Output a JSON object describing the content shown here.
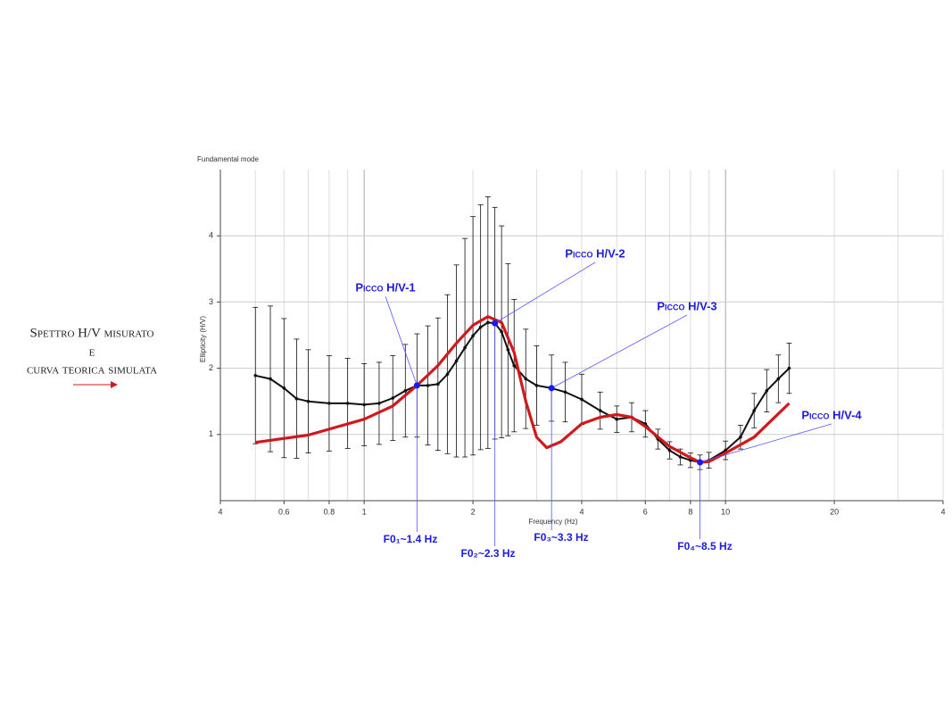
{
  "chart_data": {
    "type": "line",
    "title": "Fundamental mode",
    "xlabel": "Frequency (Hz)",
    "ylabel": "Ellipticity (H/V)",
    "xscale": "log",
    "xlim": [
      0.4,
      40
    ],
    "ylim": [
      0,
      5
    ],
    "xticks": [
      {
        "value": 0.4,
        "label": "4"
      },
      0.6,
      0.8,
      1,
      2,
      4,
      6,
      8,
      10,
      20,
      {
        "value": 40,
        "label": "4"
      }
    ],
    "yticks": [
      1,
      2,
      3,
      4
    ],
    "grid": true,
    "series": [
      {
        "color": "#111111",
        "x": [
          0.5,
          0.55,
          0.6,
          0.65,
          0.7,
          0.8,
          0.9,
          1.0,
          1.1,
          1.2,
          1.3,
          1.4,
          1.5,
          1.6,
          1.7,
          1.8,
          1.9,
          2.0,
          2.1,
          2.2,
          2.3,
          2.4,
          2.5,
          2.6,
          2.8,
          3.0,
          3.3,
          3.6,
          4.0,
          4.5,
          5.0,
          5.5,
          6.0,
          6.5,
          7.0,
          7.5,
          8.0,
          8.5,
          9.0,
          10,
          11,
          12,
          13,
          14,
          15
        ],
        "values": [
          1.89,
          1.84,
          1.7,
          1.54,
          1.5,
          1.47,
          1.47,
          1.45,
          1.47,
          1.55,
          1.66,
          1.74,
          1.74,
          1.76,
          1.91,
          2.11,
          2.31,
          2.49,
          2.62,
          2.69,
          2.68,
          2.55,
          2.28,
          2.04,
          1.84,
          1.74,
          1.7,
          1.64,
          1.53,
          1.36,
          1.23,
          1.26,
          1.16,
          0.93,
          0.76,
          0.66,
          0.61,
          0.58,
          0.61,
          0.76,
          0.96,
          1.36,
          1.66,
          1.84,
          2.0
        ],
        "errors": [
          1.03,
          1.1,
          1.05,
          0.9,
          0.78,
          0.72,
          0.68,
          0.62,
          0.62,
          0.64,
          0.7,
          0.78,
          0.9,
          1.0,
          1.2,
          1.45,
          1.65,
          1.8,
          1.85,
          1.9,
          1.75,
          1.6,
          1.3,
          1.0,
          0.75,
          0.6,
          0.5,
          0.45,
          0.38,
          0.28,
          0.2,
          0.22,
          0.2,
          0.15,
          0.13,
          0.12,
          0.11,
          0.11,
          0.12,
          0.14,
          0.18,
          0.26,
          0.32,
          0.36,
          0.38
        ]
      },
      {
        "color": "#d0191c",
        "x": [
          0.5,
          0.7,
          1.0,
          1.2,
          1.4,
          1.6,
          1.8,
          2.0,
          2.2,
          2.4,
          2.6,
          2.8,
          3.0,
          3.2,
          3.5,
          4.0,
          4.5,
          5.0,
          5.5,
          6.0,
          7.0,
          8.0,
          8.5,
          9.0,
          10,
          12,
          15
        ],
        "values": [
          0.88,
          0.99,
          1.23,
          1.43,
          1.74,
          2.04,
          2.38,
          2.65,
          2.78,
          2.69,
          2.24,
          1.5,
          0.96,
          0.8,
          0.89,
          1.16,
          1.26,
          1.3,
          1.26,
          1.12,
          0.82,
          0.65,
          0.58,
          0.59,
          0.72,
          0.96,
          1.47
        ]
      }
    ],
    "peaks": [
      {
        "label": "Picco H/V-1",
        "f_label": "F0₁~1.4 Hz",
        "x": 1.4,
        "y": 1.74
      },
      {
        "label": "Picco H/V-2",
        "f_label": "F0₂~2.3 Hz",
        "x": 2.3,
        "y": 2.68
      },
      {
        "label": "Picco H/V-3",
        "f_label": "F0₃~3.3 Hz",
        "x": 3.3,
        "y": 1.7
      },
      {
        "label": "Picco H/V-4",
        "f_label": "F0₄~8.5 Hz",
        "x": 8.5,
        "y": 0.58
      }
    ],
    "side_text": [
      "Spettro H/V misurato",
      "e",
      "curva teorica simulata"
    ]
  }
}
